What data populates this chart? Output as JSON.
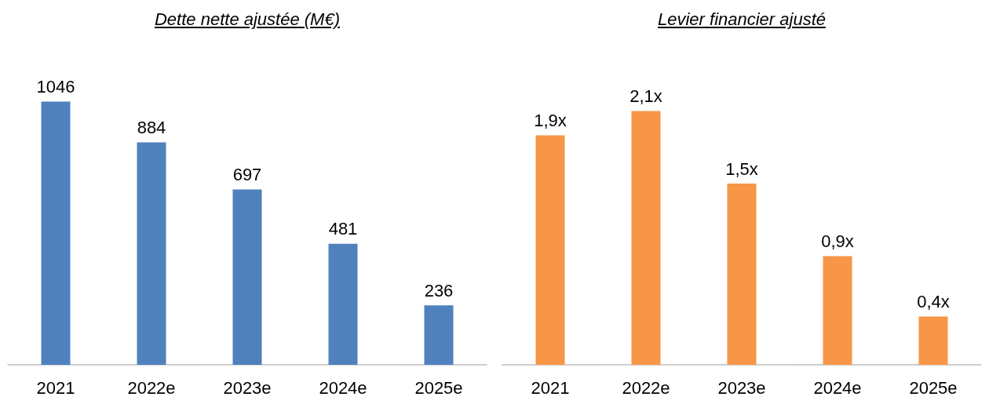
{
  "chart_data": [
    {
      "type": "bar",
      "title": "Dette nette ajustée (M€)",
      "categories": [
        "2021",
        "2022e",
        "2023e",
        "2024e",
        "2025e"
      ],
      "color": "#4f81bd",
      "values": [
        1046,
        884,
        697,
        481,
        236
      ],
      "data_labels": true
    },
    {
      "type": "bar",
      "title": "Levier financier ajusté",
      "categories": [
        "2021",
        "2022e",
        "2023e",
        "2024e",
        "2025e"
      ],
      "color": "#f79646",
      "values": [
        1.9,
        2.1,
        1.5,
        0.9,
        0.4
      ],
      "value_labels": [
        "1,9x",
        "2,1x",
        "1,5x",
        "0,9x",
        "0,4x"
      ]
    }
  ]
}
